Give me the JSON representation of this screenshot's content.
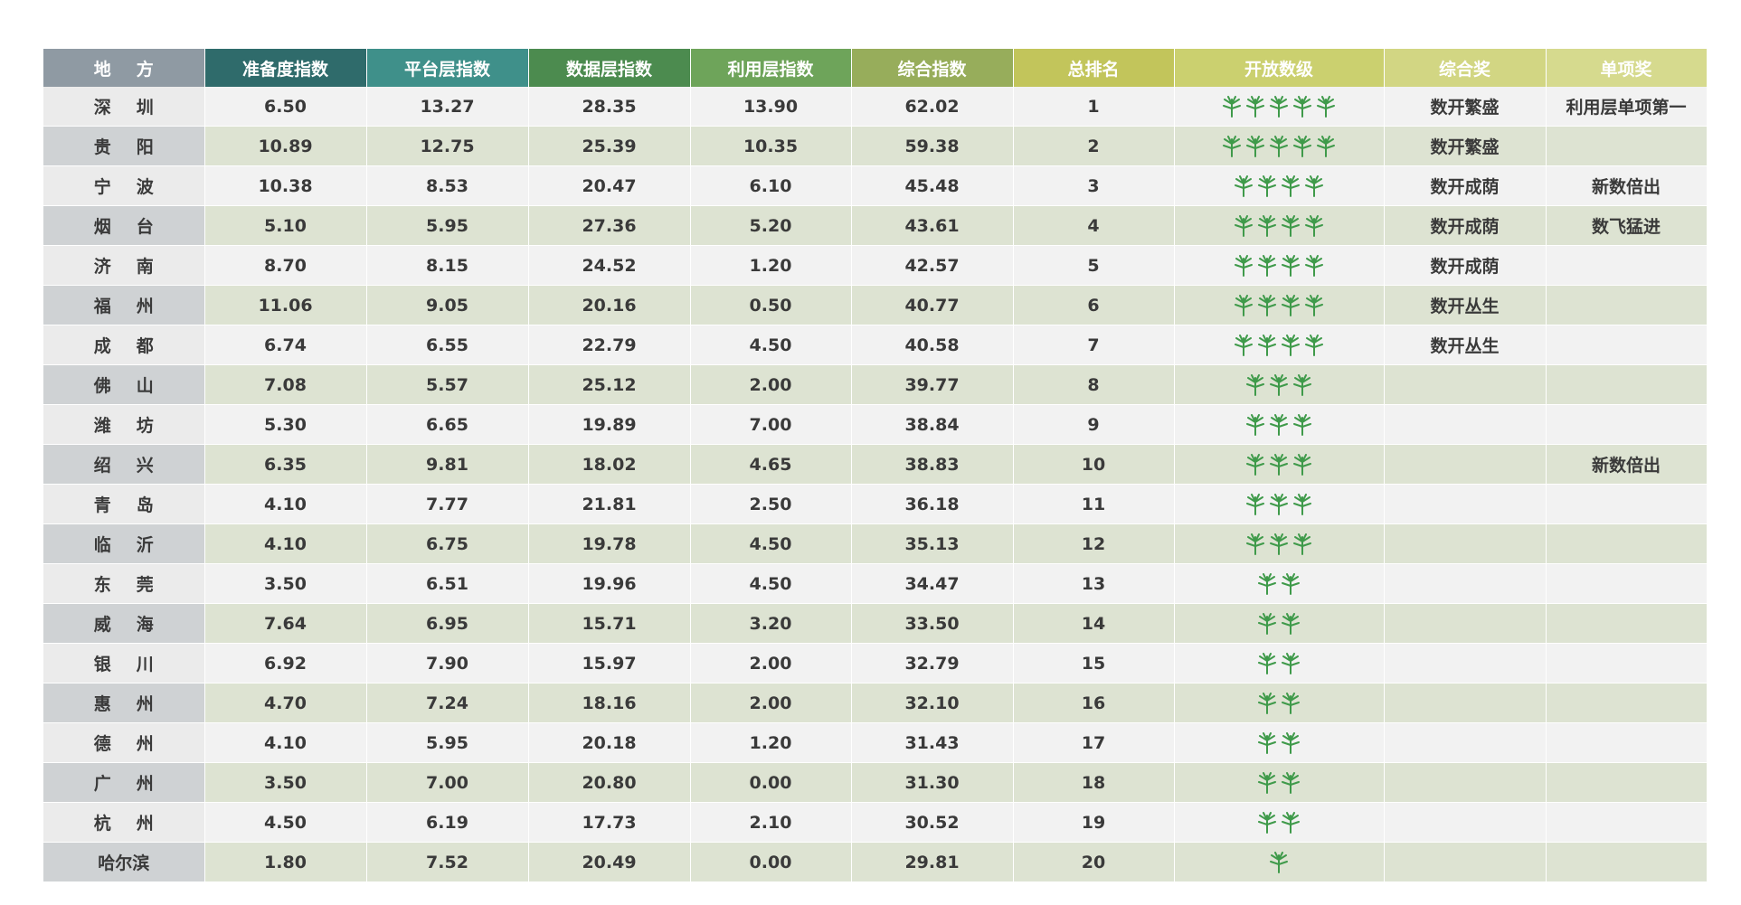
{
  "table": {
    "header": [
      "地方",
      "准备度指数",
      "平台层指数",
      "数据层指数",
      "利用层指数",
      "综合指数",
      "总排名",
      "开放数级",
      "综合奖",
      "单项奖"
    ],
    "rows": [
      [
        "深圳",
        "6.50",
        "13.27",
        "28.35",
        "13.90",
        "62.02",
        "1",
        5,
        "数开繁盛",
        "利用层单项第一"
      ],
      [
        "贵阳",
        "10.89",
        "12.75",
        "25.39",
        "10.35",
        "59.38",
        "2",
        5,
        "数开繁盛",
        null
      ],
      [
        "宁波",
        "10.38",
        "8.53",
        "20.47",
        "6.10",
        "45.48",
        "3",
        4,
        "数开成荫",
        "新数倍出"
      ],
      [
        "烟台",
        "5.10",
        "5.95",
        "27.36",
        "5.20",
        "43.61",
        "4",
        4,
        "数开成荫",
        "数飞猛进"
      ],
      [
        "济南",
        "8.70",
        "8.15",
        "24.52",
        "1.20",
        "42.57",
        "5",
        4,
        "数开成荫",
        null
      ],
      [
        "福州",
        "11.06",
        "9.05",
        "20.16",
        "0.50",
        "40.77",
        "6",
        4,
        "数开丛生",
        null
      ],
      [
        "成都",
        "6.74",
        "6.55",
        "22.79",
        "4.50",
        "40.58",
        "7",
        4,
        "数开丛生",
        null
      ],
      [
        "佛山",
        "7.08",
        "5.57",
        "25.12",
        "2.00",
        "39.77",
        "8",
        3,
        null,
        null
      ],
      [
        "潍坊",
        "5.30",
        "6.65",
        "19.89",
        "7.00",
        "38.84",
        "9",
        3,
        null,
        null
      ],
      [
        "绍兴",
        "6.35",
        "9.81",
        "18.02",
        "4.65",
        "38.83",
        "10",
        3,
        null,
        "新数倍出"
      ],
      [
        "青岛",
        "4.10",
        "7.77",
        "21.81",
        "2.50",
        "36.18",
        "11",
        3,
        null,
        null
      ],
      [
        "临沂",
        "4.10",
        "6.75",
        "19.78",
        "4.50",
        "35.13",
        "12",
        3,
        null,
        null
      ],
      [
        "东莞",
        "3.50",
        "6.51",
        "19.96",
        "4.50",
        "34.47",
        "13",
        2,
        null,
        null
      ],
      [
        "威海",
        "7.64",
        "6.95",
        "15.71",
        "3.20",
        "33.50",
        "14",
        2,
        null,
        null
      ],
      [
        "银川",
        "6.92",
        "7.90",
        "15.97",
        "2.00",
        "32.79",
        "15",
        2,
        null,
        null
      ],
      [
        "惠州",
        "4.70",
        "7.24",
        "18.16",
        "2.00",
        "32.10",
        "16",
        2,
        null,
        null
      ],
      [
        "德州",
        "4.10",
        "5.95",
        "20.18",
        "1.20",
        "31.43",
        "17",
        2,
        null,
        null
      ],
      [
        "广州",
        "3.50",
        "7.00",
        "20.80",
        "0.00",
        "31.30",
        "18",
        2,
        null,
        null
      ],
      [
        "杭州",
        "4.50",
        "6.19",
        "17.73",
        "2.10",
        "30.52",
        "19",
        2,
        null,
        null
      ],
      [
        "哈尔滨",
        "1.80",
        "7.52",
        "20.49",
        "0.00",
        "29.81",
        "20",
        1,
        null,
        null
      ]
    ]
  }
}
